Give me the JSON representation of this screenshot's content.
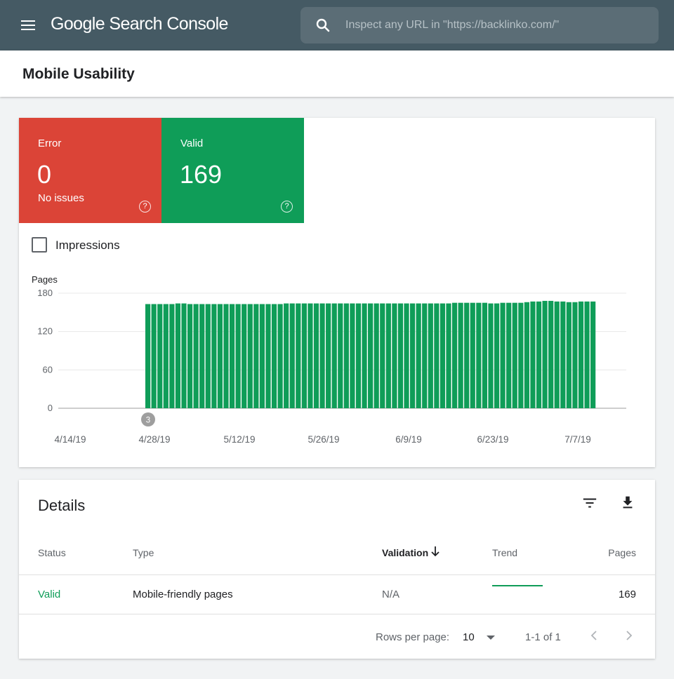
{
  "header": {
    "brand_google": "Google",
    "brand_product": "Search Console",
    "search_placeholder": "Inspect any URL in \"https://backlinko.com/\""
  },
  "page": {
    "title": "Mobile Usability"
  },
  "summary": {
    "error": {
      "label": "Error",
      "count": "0",
      "sub": "No issues",
      "color": "#db4437"
    },
    "valid": {
      "label": "Valid",
      "count": "169",
      "color": "#0f9d58"
    }
  },
  "impressions_label": "Impressions",
  "chart_data": {
    "type": "bar",
    "ylabel": "Pages",
    "ylim": [
      0,
      180
    ],
    "y_ticks": [
      0,
      60,
      120,
      180
    ],
    "x_tick_labels": [
      "4/14/19",
      "4/28/19",
      "5/12/19",
      "5/26/19",
      "6/9/19",
      "6/23/19",
      "7/7/19"
    ],
    "annotation": {
      "date": "4/28/19",
      "label": "3"
    },
    "series": [
      {
        "color": "#0f9d58",
        "values": [
          0,
          0,
          0,
          0,
          0,
          0,
          0,
          0,
          0,
          0,
          0,
          0,
          0,
          0,
          163,
          163,
          163,
          163,
          163,
          164,
          164,
          163,
          163,
          163,
          163,
          163,
          163,
          163,
          163,
          163,
          163,
          163,
          163,
          163,
          163,
          163,
          163,
          164,
          164,
          164,
          164,
          164,
          164,
          164,
          164,
          164,
          164,
          164,
          164,
          164,
          164,
          164,
          164,
          164,
          164,
          164,
          164,
          164,
          164,
          164,
          164,
          164,
          164,
          164,
          164,
          165,
          165,
          165,
          165,
          165,
          165,
          164,
          164,
          165,
          165,
          165,
          165,
          166,
          167,
          167,
          168,
          168,
          167,
          167,
          166,
          166,
          167,
          167,
          167
        ]
      }
    ]
  },
  "details": {
    "title": "Details",
    "columns": {
      "status": "Status",
      "type": "Type",
      "validation": "Validation",
      "trend": "Trend",
      "pages": "Pages"
    },
    "rows": [
      {
        "status": "Valid",
        "type": "Mobile-friendly pages",
        "validation": "N/A",
        "pages": "169"
      }
    ],
    "footer": {
      "rows_per_page_label": "Rows per page:",
      "rows_per_page_value": "10",
      "range": "1-1 of 1"
    }
  }
}
